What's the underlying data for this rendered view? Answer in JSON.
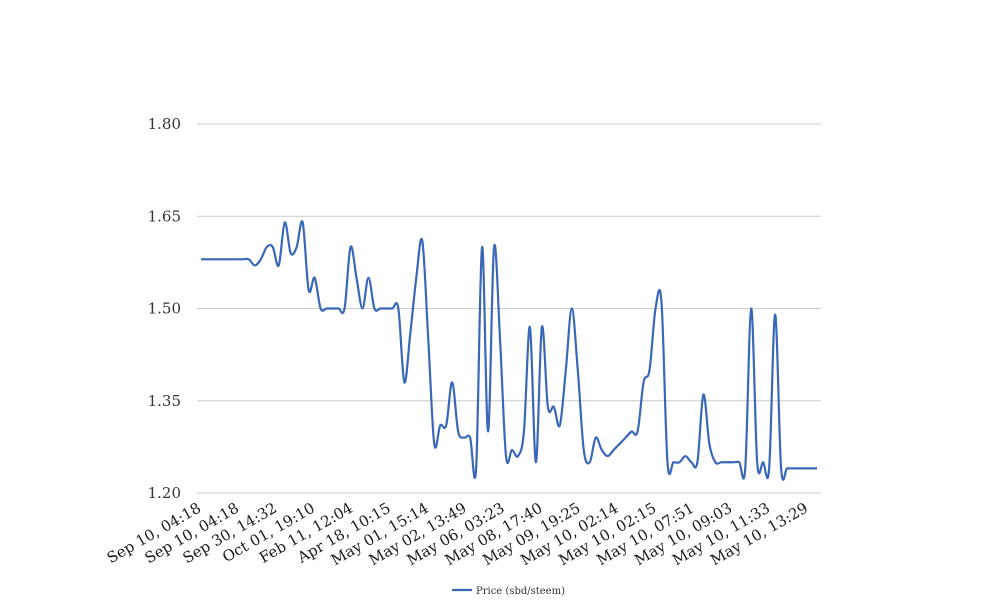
{
  "chart_data": {
    "type": "line",
    "title": "",
    "xlabel": "",
    "ylabel": "",
    "ylim": [
      1.2,
      1.8
    ],
    "y_ticks": [
      "1.20",
      "1.35",
      "1.50",
      "1.65",
      "1.80"
    ],
    "grid": "horizontal",
    "legend": "bottom-center",
    "colors": {
      "series": "#3a67b8",
      "grid": "#cccccc"
    },
    "tick_labels": [
      "Sep 10, 04:18",
      "Sep 10, 04:18",
      "Sep 30, 14:32",
      "Oct 01, 19:10",
      "Feb 11, 12:04",
      "Apr 18, 10:15",
      "May 01, 15:14",
      "May 02, 13:49",
      "May 06, 03:23",
      "May 08, 17:40",
      "May 09, 19:25",
      "May 10, 02:14",
      "May 10, 02:15",
      "May 10, 07:51",
      "May 10, 09:03",
      "May 10, 11:33",
      "May 10, 13:29"
    ],
    "series": [
      {
        "name": "Price (sbd/steem)",
        "values": [
          1.58,
          1.58,
          1.58,
          1.58,
          1.58,
          1.58,
          1.58,
          1.58,
          1.58,
          1.57,
          1.58,
          1.6,
          1.6,
          1.57,
          1.64,
          1.59,
          1.6,
          1.64,
          1.53,
          1.55,
          1.5,
          1.5,
          1.5,
          1.5,
          1.5,
          1.6,
          1.55,
          1.5,
          1.55,
          1.5,
          1.5,
          1.5,
          1.5,
          1.5,
          1.38,
          1.46,
          1.55,
          1.61,
          1.45,
          1.28,
          1.31,
          1.31,
          1.38,
          1.3,
          1.29,
          1.29,
          1.24,
          1.6,
          1.3,
          1.6,
          1.45,
          1.26,
          1.27,
          1.26,
          1.3,
          1.47,
          1.25,
          1.47,
          1.34,
          1.34,
          1.31,
          1.4,
          1.5,
          1.4,
          1.27,
          1.25,
          1.29,
          1.27,
          1.26,
          1.27,
          1.28,
          1.29,
          1.3,
          1.3,
          1.38,
          1.4,
          1.5,
          1.51,
          1.25,
          1.25,
          1.25,
          1.26,
          1.25,
          1.25,
          1.36,
          1.28,
          1.25,
          1.25,
          1.25,
          1.25,
          1.25,
          1.24,
          1.5,
          1.25,
          1.25,
          1.24,
          1.49,
          1.24,
          1.24,
          1.24,
          1.24,
          1.24,
          1.24,
          1.24
        ]
      }
    ]
  }
}
